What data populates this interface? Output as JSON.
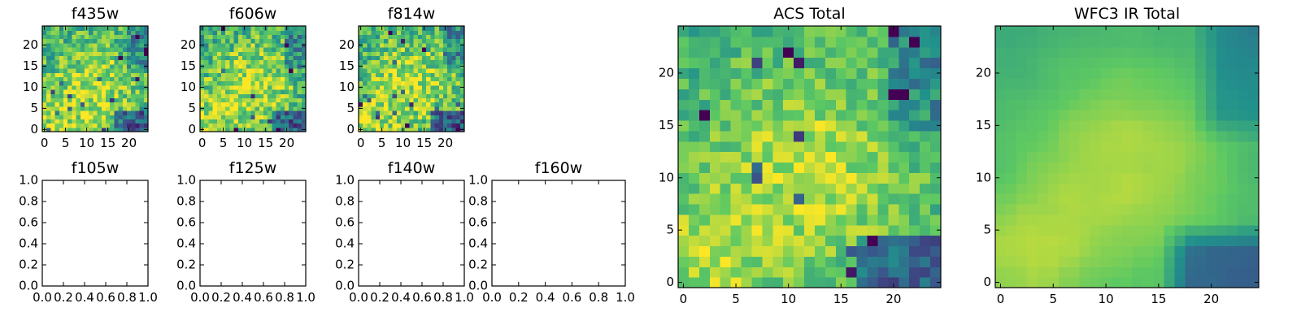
{
  "colormap": {
    "name": "viridis",
    "stops": [
      "#440154",
      "#3b528b",
      "#21918c",
      "#5ec962",
      "#fde725"
    ]
  },
  "chart_data": [
    {
      "type": "heatmap",
      "title": "f435w",
      "colormap": "viridis",
      "grid_size": [
        25,
        25
      ],
      "xlim": [
        -0.5,
        24.5
      ],
      "ylim": [
        -0.5,
        24.5
      ],
      "xticks": [
        "0",
        "5",
        "10",
        "15",
        "20"
      ],
      "yticks": [
        "0",
        "5",
        "10",
        "15",
        "20"
      ],
      "noise_level": "high",
      "brightest_region": "center"
    },
    {
      "type": "heatmap",
      "title": "f606w",
      "colormap": "viridis",
      "grid_size": [
        25,
        25
      ],
      "xlim": [
        -0.5,
        24.5
      ],
      "ylim": [
        -0.5,
        24.5
      ],
      "xticks": [
        "0",
        "5",
        "10",
        "15",
        "20"
      ],
      "yticks": [
        "0",
        "5",
        "10",
        "15",
        "20"
      ],
      "noise_level": "high",
      "brightest_region": "center"
    },
    {
      "type": "heatmap",
      "title": "f814w",
      "colormap": "viridis",
      "grid_size": [
        25,
        25
      ],
      "xlim": [
        -0.5,
        24.5
      ],
      "ylim": [
        -0.5,
        24.5
      ],
      "xticks": [
        "0",
        "5",
        "10",
        "15",
        "20"
      ],
      "yticks": [
        "0",
        "5",
        "10",
        "15",
        "20"
      ],
      "noise_level": "high",
      "brightest_region": "lower-left and center"
    },
    {
      "type": "empty",
      "title": "f105w",
      "xlim": [
        0,
        1
      ],
      "ylim": [
        0,
        1
      ],
      "xticks": [
        "0.0",
        "0.2",
        "0.4",
        "0.6",
        "0.8",
        "1.0"
      ],
      "yticks": [
        "0.0",
        "0.2",
        "0.4",
        "0.6",
        "0.8",
        "1.0"
      ]
    },
    {
      "type": "empty",
      "title": "f125w",
      "xlim": [
        0,
        1
      ],
      "ylim": [
        0,
        1
      ],
      "xticks": [
        "0.0",
        "0.2",
        "0.4",
        "0.6",
        "0.8",
        "1.0"
      ],
      "yticks": [
        "0.0",
        "0.2",
        "0.4",
        "0.6",
        "0.8",
        "1.0"
      ]
    },
    {
      "type": "empty",
      "title": "f140w",
      "xlim": [
        0,
        1
      ],
      "ylim": [
        0,
        1
      ],
      "xticks": [
        "0.0",
        "0.2",
        "0.4",
        "0.6",
        "0.8",
        "1.0"
      ],
      "yticks": [
        "0.0",
        "0.2",
        "0.4",
        "0.6",
        "0.8",
        "1.0"
      ]
    },
    {
      "type": "empty",
      "title": "f160w",
      "xlim": [
        0,
        1
      ],
      "ylim": [
        0,
        1
      ],
      "xticks": [
        "0.0",
        "0.2",
        "0.4",
        "0.6",
        "0.8",
        "1.0"
      ],
      "yticks": [
        "0.0",
        "0.2",
        "0.4",
        "0.6",
        "0.8",
        "1.0"
      ]
    },
    {
      "type": "heatmap",
      "title": "ACS Total",
      "colormap": "viridis",
      "grid_size": [
        25,
        25
      ],
      "xlim": [
        -0.5,
        24.5
      ],
      "ylim": [
        -0.5,
        24.5
      ],
      "xticks": [
        "0",
        "5",
        "10",
        "15",
        "20"
      ],
      "yticks": [
        "0",
        "5",
        "10",
        "15",
        "20"
      ],
      "noise_level": "medium",
      "brightest_region": "center and lower-left"
    },
    {
      "type": "heatmap",
      "title": "WFC3 IR Total",
      "colormap": "viridis",
      "grid_size": [
        25,
        25
      ],
      "xlim": [
        -0.5,
        24.5
      ],
      "ylim": [
        -0.5,
        24.5
      ],
      "xticks": [
        "0",
        "5",
        "10",
        "15",
        "20"
      ],
      "yticks": [
        "0",
        "5",
        "10",
        "15",
        "20"
      ],
      "noise_level": "low",
      "brightest_region": "center and lower-left"
    }
  ]
}
